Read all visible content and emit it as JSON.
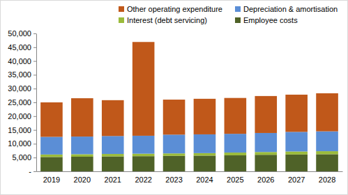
{
  "chart_data": {
    "type": "bar",
    "stacked": true,
    "grid": false,
    "legend": "top",
    "categories": [
      "2019",
      "2020",
      "2021",
      "2022",
      "2023",
      "2024",
      "2025",
      "2026",
      "2027",
      "2028"
    ],
    "series": [
      {
        "name": "Employee costs",
        "color": "#4f6228",
        "values": [
          5200,
          5300,
          5400,
          5500,
          5600,
          5700,
          5800,
          6000,
          6100,
          6200
        ]
      },
      {
        "name": "Interest (debt servicing)",
        "color": "#9bbb3b",
        "values": [
          900,
          900,
          900,
          900,
          900,
          900,
          1000,
          1000,
          1100,
          1100
        ]
      },
      {
        "name": "Depreciation & amortisation",
        "color": "#5b8ed6",
        "values": [
          6400,
          6400,
          6500,
          6500,
          6800,
          6800,
          6800,
          6900,
          7100,
          7200
        ]
      },
      {
        "name": "Other operating expenditure",
        "color": "#c0581a",
        "values": [
          12500,
          13900,
          13000,
          34000,
          12700,
          12900,
          13000,
          13400,
          13500,
          13800
        ]
      }
    ],
    "ylim": [
      0,
      50000
    ],
    "yticks": [
      {
        "value": 0,
        "label": "-"
      },
      {
        "value": 5000,
        "label": "5,000"
      },
      {
        "value": 10000,
        "label": "10,000"
      },
      {
        "value": 15000,
        "label": "15,000"
      },
      {
        "value": 20000,
        "label": "20,000"
      },
      {
        "value": 25000,
        "label": "25,000"
      },
      {
        "value": 30000,
        "label": "30,000"
      },
      {
        "value": 35000,
        "label": "35,000"
      },
      {
        "value": 40000,
        "label": "40,000"
      },
      {
        "value": 45000,
        "label": "45,000"
      },
      {
        "value": 50000,
        "label": "50,000"
      }
    ]
  }
}
